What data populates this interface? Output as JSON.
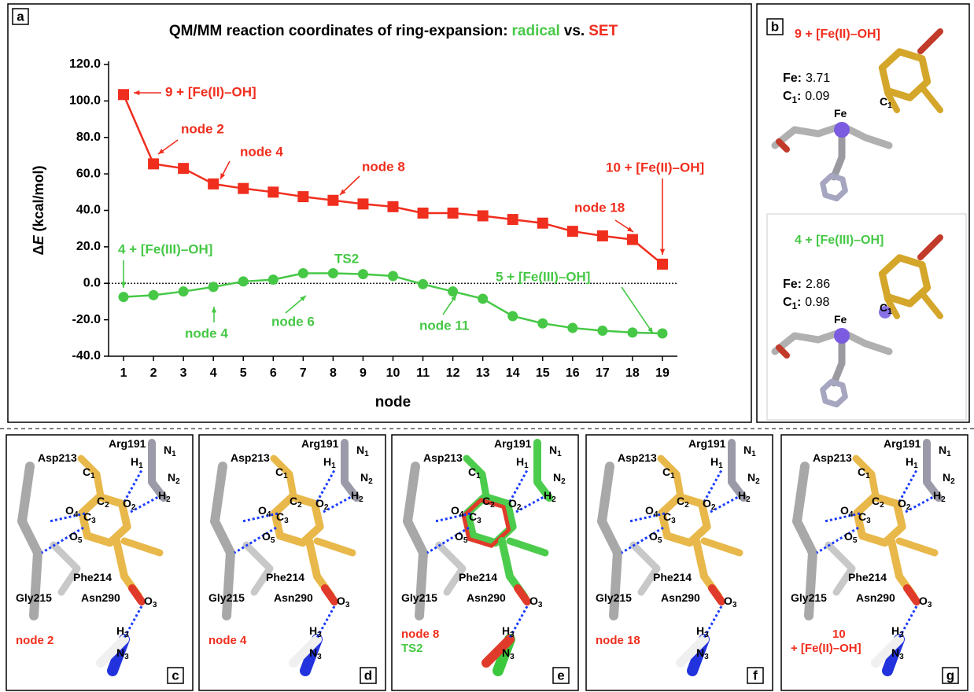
{
  "chart_data": {
    "type": "line",
    "title": "QM/MM reaction coordinates of ring-expansion:",
    "title_vs": "vs.",
    "panel_letter": "a",
    "x_label": "node",
    "y_label": [
      {
        "t": "Δ"
      },
      {
        "t": "E",
        "italic": true
      },
      {
        "t": " (kcal/mol)"
      }
    ],
    "x": [
      1,
      2,
      3,
      4,
      5,
      6,
      7,
      8,
      9,
      10,
      11,
      12,
      13,
      14,
      15,
      16,
      17,
      18,
      19
    ],
    "xlim": [
      0.5,
      19.5
    ],
    "xticks": [
      1,
      2,
      3,
      4,
      5,
      6,
      7,
      8,
      9,
      10,
      11,
      12,
      13,
      14,
      15,
      16,
      17,
      18,
      19
    ],
    "ylim": [
      -40,
      120
    ],
    "yticks": [
      {
        "value": -40,
        "label": "-40.0"
      },
      {
        "value": -20,
        "label": "-20.0"
      },
      {
        "value": 0,
        "label": "0.0"
      },
      {
        "value": 20,
        "label": "20.0"
      },
      {
        "value": 40,
        "label": "40.0"
      },
      {
        "value": 60,
        "label": "60.0"
      },
      {
        "value": 80,
        "label": "80.0"
      },
      {
        "value": 100,
        "label": "100.0"
      },
      {
        "value": 120,
        "label": "120.0"
      }
    ],
    "reference_line": {
      "value": 0,
      "style": "dotted"
    },
    "series": [
      {
        "name": "radical",
        "color": "#46c846",
        "marker": "circle",
        "values": [
          -7.5,
          -6.5,
          -4.5,
          -2,
          1,
          2,
          5.5,
          5.5,
          5,
          4,
          -0.5,
          -4.5,
          -8.5,
          -18,
          -22,
          -24.5,
          -26,
          -27,
          -27.5
        ]
      },
      {
        "name": "SET",
        "color": "#f02e1e",
        "marker": "square",
        "values": [
          103.5,
          65.5,
          63,
          54.5,
          52,
          50,
          47.5,
          45.5,
          43.5,
          42,
          38.5,
          38.5,
          37,
          35,
          33,
          28.5,
          26,
          24,
          10.5
        ]
      }
    ],
    "annotations": [
      {
        "text": "9 + [Fe(II)–OH]",
        "color": "#f02e1e"
      },
      {
        "text": "node 2",
        "color": "#f02e1e"
      },
      {
        "text": "node 4",
        "color": "#f02e1e"
      },
      {
        "text": "node 8",
        "color": "#f02e1e"
      },
      {
        "text": "10 + [Fe(II)–OH]",
        "color": "#f02e1e"
      },
      {
        "text": "node 18",
        "color": "#f02e1e"
      },
      {
        "text": "4 + [Fe(III)–OH]",
        "color": "#46c846"
      },
      {
        "text": "TS2",
        "color": "#46c846"
      },
      {
        "text": "5 + [Fe(III)–OH]",
        "color": "#46c846"
      },
      {
        "text": "node 4",
        "color": "#46c846"
      },
      {
        "text": "node 6",
        "color": "#46c846"
      },
      {
        "text": "node 11",
        "color": "#46c846"
      }
    ]
  },
  "panel_b": {
    "letter": "b",
    "atoms": [
      [
        {
          "t": "C"
        },
        {
          "t": "1",
          "sub": true
        }
      ],
      [
        {
          "t": "Fe"
        }
      ]
    ],
    "states": [
      {
        "title": "9 + [Fe(II)–OH]",
        "color": "#f02e1e",
        "spins": [
          {
            "label": [
              {
                "t": "Fe:"
              }
            ],
            "value": "3.71"
          },
          {
            "label": [
              {
                "t": "C"
              },
              {
                "t": "1",
                "sub": true
              },
              {
                "t": ":"
              }
            ],
            "value": "0.09"
          }
        ]
      },
      {
        "title": "4 + [Fe(III)–OH]",
        "color": "#46c846",
        "spins": [
          {
            "label": [
              {
                "t": "Fe:"
              }
            ],
            "value": "2.86"
          },
          {
            "label": [
              {
                "t": "C"
              },
              {
                "t": "1",
                "sub": true
              },
              {
                "t": ":"
              }
            ],
            "value": "0.98"
          }
        ]
      }
    ]
  },
  "bottom_panels": {
    "labels": [
      [
        {
          "t": "Asp213"
        }
      ],
      [
        {
          "t": "Arg191"
        }
      ],
      [
        {
          "t": "N"
        },
        {
          "t": "1",
          "sub": true
        }
      ],
      [
        {
          "t": "H"
        },
        {
          "t": "1",
          "sub": true
        }
      ],
      [
        {
          "t": "N"
        },
        {
          "t": "2",
          "sub": true
        }
      ],
      [
        {
          "t": "C"
        },
        {
          "t": "1",
          "sub": true
        }
      ],
      [
        {
          "t": "O"
        },
        {
          "t": "4",
          "sub": true
        }
      ],
      [
        {
          "t": "C"
        },
        {
          "t": "2",
          "sub": true
        }
      ],
      [
        {
          "t": "O"
        },
        {
          "t": "2",
          "sub": true
        }
      ],
      [
        {
          "t": "H"
        },
        {
          "t": "2",
          "sub": true
        }
      ],
      [
        {
          "t": "C"
        },
        {
          "t": "3",
          "sub": true
        }
      ],
      [
        {
          "t": "O"
        },
        {
          "t": "5",
          "sub": true
        }
      ],
      [
        {
          "t": "Phe214"
        }
      ],
      [
        {
          "t": "Gly215"
        }
      ],
      [
        {
          "t": "Asn290"
        }
      ],
      [
        {
          "t": "O"
        },
        {
          "t": "3",
          "sub": true
        }
      ],
      [
        {
          "t": "H"
        },
        {
          "t": "3",
          "sub": true
        }
      ],
      [
        {
          "t": "N"
        },
        {
          "t": "3",
          "sub": true
        }
      ]
    ],
    "panels": [
      {
        "letter": "c",
        "caption": [
          {
            "t": "node 2",
            "color": "#f02e1e"
          }
        ]
      },
      {
        "letter": "d",
        "caption": [
          {
            "t": "node 4",
            "color": "#f02e1e"
          }
        ]
      },
      {
        "letter": "e",
        "caption": [
          {
            "t": "node 8",
            "color": "#f02e1e"
          },
          {
            "t": "TS2",
            "color": "#46c846"
          }
        ]
      },
      {
        "letter": "f",
        "caption": [
          {
            "t": "node 18",
            "color": "#f02e1e"
          }
        ]
      },
      {
        "letter": "g",
        "caption": [
          {
            "t": "10",
            "color": "#f02e1e"
          },
          {
            "t": "+ [Fe(II)–OH]",
            "color": "#f02e1e"
          }
        ]
      }
    ]
  }
}
